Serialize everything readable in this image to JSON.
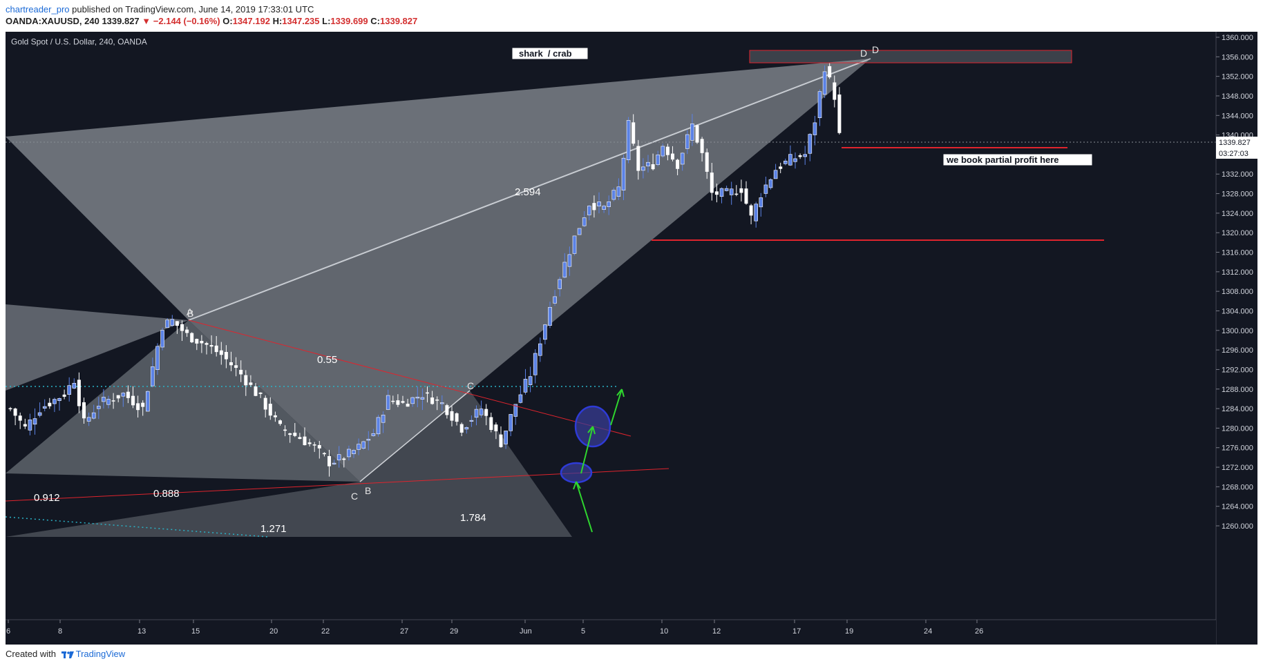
{
  "header": {
    "author": "chartreader_pro",
    "published_text": "published on TradingView.com, June 14, 2019 17:33:01 UTC",
    "symbol": "OANDA:XAUUSD, 240",
    "last": "1339.827",
    "change": "▼ −2.144 (−0.16%)",
    "o_label": "O:",
    "o": "1347.192",
    "h_label": "H:",
    "h": "1347.235",
    "l_label": "L:",
    "l": "1339.699",
    "c_label": "C:",
    "c": "1339.827"
  },
  "chart_data": {
    "type": "candlestick",
    "title": "Gold Spot / U.S. Dollar, 240, OANDA",
    "ylim": [
      1258,
      1362
    ],
    "y_ticks": [
      "1260.000",
      "1264.000",
      "1268.000",
      "1272.000",
      "1276.000",
      "1280.000",
      "1284.000",
      "1288.000",
      "1292.000",
      "1296.000",
      "1300.000",
      "1304.000",
      "1308.000",
      "1312.000",
      "1316.000",
      "1320.000",
      "1324.000",
      "1328.000",
      "1332.000",
      "1336.000",
      "1340.000",
      "1344.000",
      "1348.000",
      "1352.000",
      "1356.000",
      "1360.000"
    ],
    "x_ticks": [
      "6",
      "8",
      "13",
      "15",
      "20",
      "22",
      "27",
      "29",
      "Jun",
      "5",
      "10",
      "12",
      "17",
      "19",
      "24",
      "26"
    ],
    "price_tag": "1339.827",
    "countdown_tag": "03:27:03",
    "price_path": [
      {
        "x": 0,
        "y": 1284
      },
      {
        "x": 3,
        "y": 1280
      },
      {
        "x": 6,
        "y": 1284
      },
      {
        "x": 11,
        "y": 1287
      },
      {
        "x": 13,
        "y": 1290
      },
      {
        "x": 15,
        "y": 1281
      },
      {
        "x": 18,
        "y": 1285
      },
      {
        "x": 23,
        "y": 1287
      },
      {
        "x": 27,
        "y": 1284
      },
      {
        "x": 31,
        "y": 1301
      },
      {
        "x": 33,
        "y": 1302
      },
      {
        "x": 36,
        "y": 1299
      },
      {
        "x": 40,
        "y": 1297
      },
      {
        "x": 43,
        "y": 1295
      },
      {
        "x": 47,
        "y": 1291
      },
      {
        "x": 51,
        "y": 1286
      },
      {
        "x": 55,
        "y": 1280
      },
      {
        "x": 59,
        "y": 1278
      },
      {
        "x": 62,
        "y": 1276
      },
      {
        "x": 65,
        "y": 1273
      },
      {
        "x": 68,
        "y": 1274
      },
      {
        "x": 71,
        "y": 1276
      },
      {
        "x": 74,
        "y": 1279
      },
      {
        "x": 77,
        "y": 1286
      },
      {
        "x": 80,
        "y": 1285
      },
      {
        "x": 84,
        "y": 1287
      },
      {
        "x": 88,
        "y": 1285
      },
      {
        "x": 92,
        "y": 1280
      },
      {
        "x": 96,
        "y": 1284
      },
      {
        "x": 100,
        "y": 1277
      },
      {
        "x": 103,
        "y": 1285
      },
      {
        "x": 106,
        "y": 1291
      },
      {
        "x": 108,
        "y": 1298
      },
      {
        "x": 110,
        "y": 1305
      },
      {
        "x": 112,
        "y": 1311
      },
      {
        "x": 115,
        "y": 1319
      },
      {
        "x": 118,
        "y": 1326
      },
      {
        "x": 121,
        "y": 1325
      },
      {
        "x": 124,
        "y": 1329
      },
      {
        "x": 126,
        "y": 1342
      },
      {
        "x": 128,
        "y": 1333
      },
      {
        "x": 131,
        "y": 1334
      },
      {
        "x": 133,
        "y": 1338
      },
      {
        "x": 136,
        "y": 1334
      },
      {
        "x": 139,
        "y": 1342
      },
      {
        "x": 141,
        "y": 1336
      },
      {
        "x": 143,
        "y": 1328
      },
      {
        "x": 146,
        "y": 1328
      },
      {
        "x": 149,
        "y": 1329
      },
      {
        "x": 151,
        "y": 1323
      },
      {
        "x": 153,
        "y": 1328
      },
      {
        "x": 156,
        "y": 1333
      },
      {
        "x": 159,
        "y": 1335
      },
      {
        "x": 162,
        "y": 1336
      },
      {
        "x": 164,
        "y": 1343
      },
      {
        "x": 166,
        "y": 1354
      },
      {
        "x": 168,
        "y": 1348
      },
      {
        "x": 169,
        "y": 1339.8
      }
    ],
    "pattern_labels": [
      "A",
      "B",
      "C",
      "D",
      "D",
      "C",
      "B"
    ],
    "ratio_labels": [
      "0.55",
      "2.594",
      "0.912",
      "0.888",
      "1.784",
      "1.271"
    ],
    "annotations": [
      "shark  / crab",
      "we book partial profit here"
    ]
  },
  "footer": {
    "created_with": "Created with",
    "brand": "TradingView"
  },
  "colors": {
    "background": "#131722",
    "candle_up": "#5b82e6",
    "candle_down": "#ffffff",
    "pattern_fill_light": "#9aa0a8",
    "pattern_fill_dark": "#5a5f67",
    "level_line": "#e0242d",
    "guide_dotted": "#2bb3c7",
    "arrow": "#2fd62f"
  }
}
